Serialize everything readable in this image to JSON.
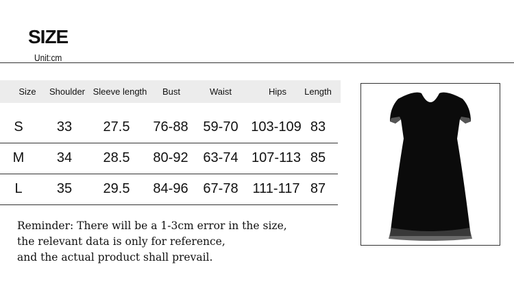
{
  "title": "SIZE",
  "unit": "Unit:cm",
  "table": {
    "headers": [
      "Size",
      "Shoulder",
      "Sleeve length",
      "Bust",
      "Waist",
      "Hips",
      "Length"
    ],
    "rows": [
      [
        "S",
        "33",
        "27.5",
        "76-88",
        "59-70",
        "103-109",
        "83"
      ],
      [
        "M",
        "34",
        "28.5",
        "80-92",
        "63-74",
        "107-113",
        "85"
      ],
      [
        "L",
        "35",
        "29.5",
        "84-96",
        "67-78",
        "111-117",
        "87"
      ]
    ]
  },
  "reminder": [
    "Reminder: There will be a 1-3cm error in the size,",
    "the relevant data is only for reference,",
    "and the actual product shall prevail."
  ],
  "product_image": "black velvet short-sleeve dress with lace trim"
}
